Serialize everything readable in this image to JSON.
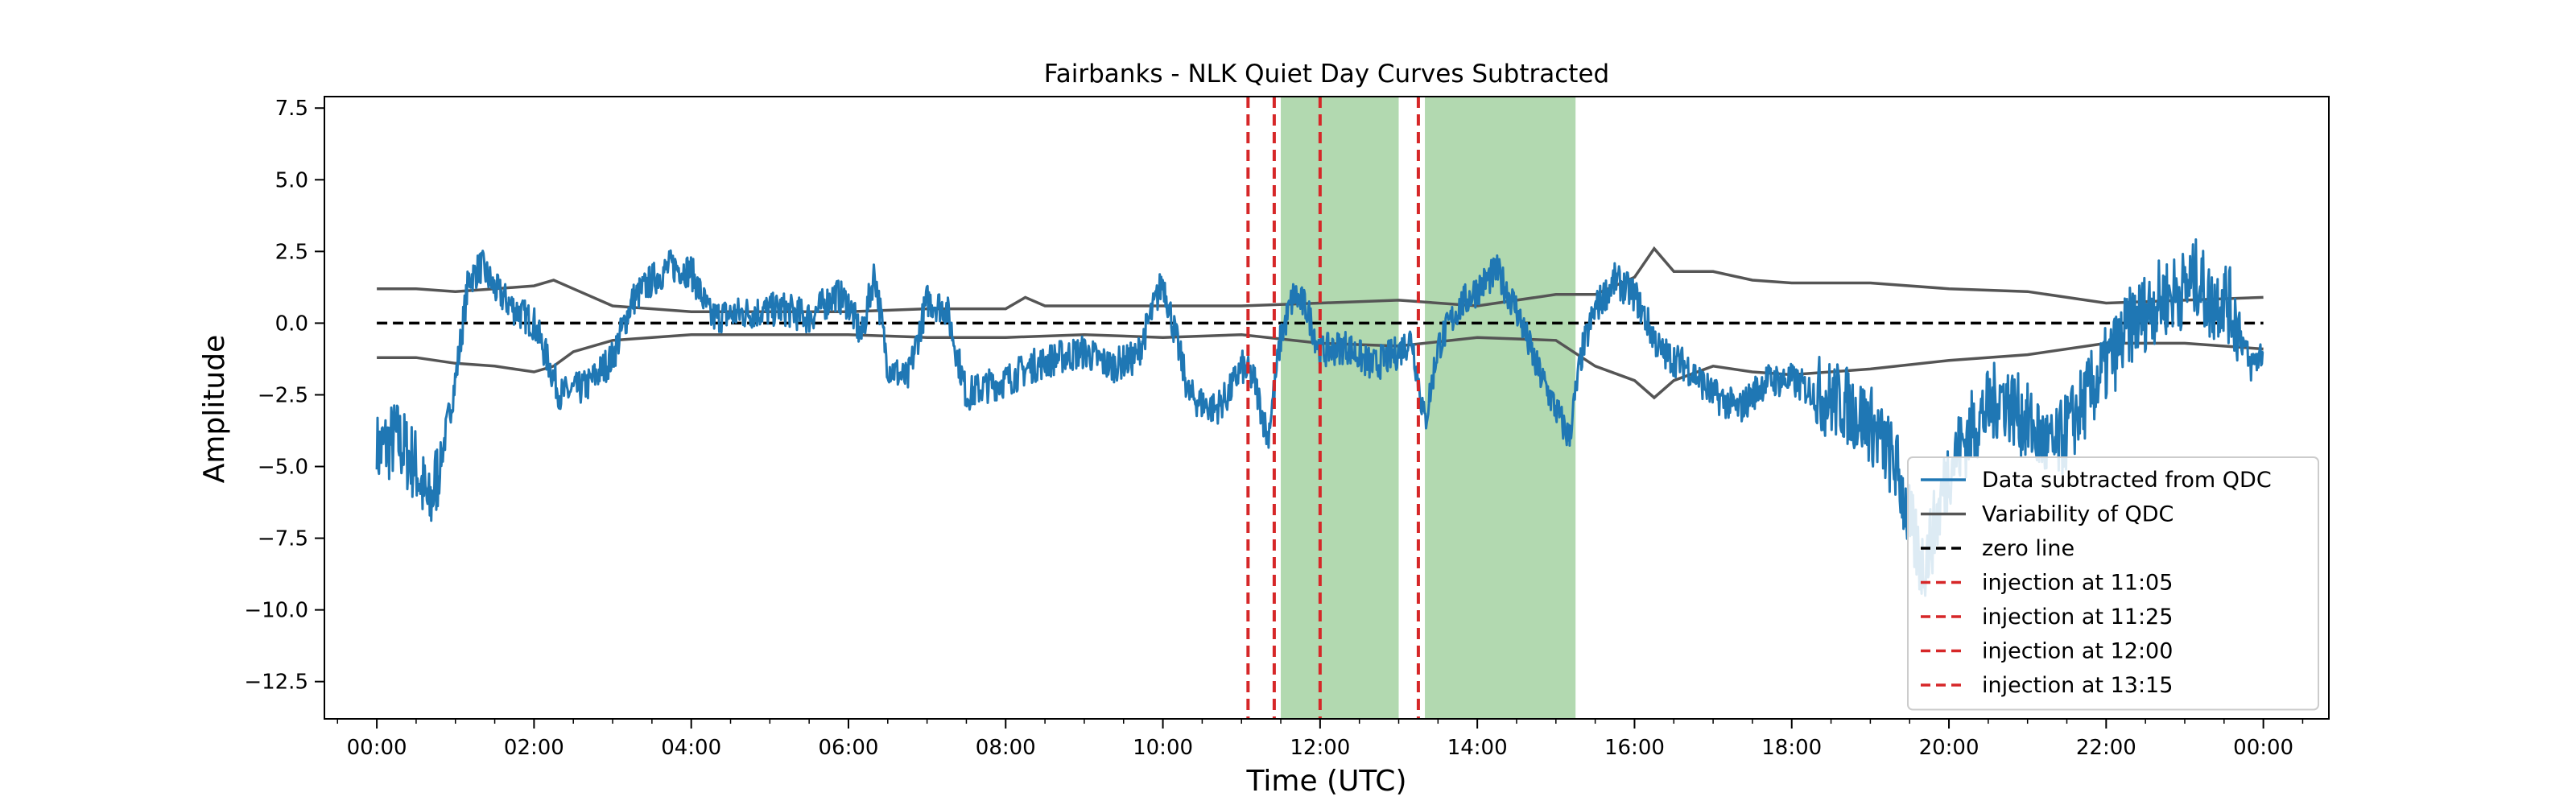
{
  "chart_data": {
    "type": "line",
    "title": "Fairbanks - NLK Quiet Day Curves Subtracted",
    "xlabel": "Time (UTC)",
    "ylabel": "Amplitude",
    "xlim": [
      "-00:40",
      "24:50"
    ],
    "ylim": [
      -13.8,
      7.9
    ],
    "xticks": [
      "00:00",
      "02:00",
      "04:00",
      "06:00",
      "08:00",
      "10:00",
      "12:00",
      "14:00",
      "16:00",
      "18:00",
      "20:00",
      "22:00",
      "00:00"
    ],
    "yticks": [
      "7.5",
      "5.0",
      "2.5",
      "0.0",
      "−2.5",
      "−5.0",
      "−7.5",
      "−10.0",
      "−12.5"
    ],
    "ytick_values": [
      7.5,
      5.0,
      2.5,
      0.0,
      -2.5,
      -5.0,
      -7.5,
      -10.0,
      -12.5
    ],
    "grid": false,
    "legend_position": "lower-right",
    "colors": {
      "data": "#1f77b4",
      "qdc": "#555555",
      "zero": "#000000",
      "injection": "#d62728",
      "shade": "#b2d9b0"
    },
    "shaded_spans": [
      {
        "start": "11:30",
        "end": "13:00"
      },
      {
        "start": "13:20",
        "end": "15:15"
      }
    ],
    "injections": [
      "11:05",
      "11:25",
      "12:00",
      "13:15"
    ],
    "series": [
      {
        "name": "Data subtracted from QDC",
        "x": [
          "00:00",
          "00:15",
          "00:30",
          "00:40",
          "00:50",
          "01:00",
          "01:10",
          "01:20",
          "01:30",
          "01:45",
          "02:00",
          "02:20",
          "02:40",
          "03:00",
          "03:15",
          "03:30",
          "03:45",
          "04:00",
          "04:15",
          "04:30",
          "04:50",
          "05:10",
          "05:30",
          "05:50",
          "06:00",
          "06:10",
          "06:20",
          "06:30",
          "06:45",
          "07:00",
          "07:15",
          "07:30",
          "07:45",
          "08:00",
          "08:20",
          "08:40",
          "09:00",
          "09:20",
          "09:40",
          "10:00",
          "10:10",
          "10:20",
          "10:30",
          "10:40",
          "10:50",
          "11:00",
          "11:10",
          "11:20",
          "11:30",
          "11:40",
          "11:50",
          "12:00",
          "12:20",
          "12:40",
          "13:00",
          "13:10",
          "13:20",
          "13:30",
          "13:45",
          "14:00",
          "14:15",
          "14:30",
          "14:45",
          "15:00",
          "15:10",
          "15:20",
          "15:30",
          "15:45",
          "16:00",
          "16:20",
          "16:40",
          "17:00",
          "17:20",
          "17:40",
          "18:00",
          "18:20",
          "18:40",
          "19:00",
          "19:20",
          "19:30",
          "19:40",
          "19:50",
          "20:00",
          "20:20",
          "20:40",
          "21:00",
          "21:20",
          "21:40",
          "22:00",
          "22:20",
          "22:40",
          "23:00",
          "23:10",
          "23:20",
          "23:30",
          "23:40",
          "23:50",
          "00:00"
        ],
        "y": [
          -4.5,
          -4.0,
          -5.0,
          -6.5,
          -4.5,
          -2.0,
          1.5,
          2.0,
          1.2,
          0.5,
          0.0,
          -2.5,
          -2.2,
          -1.2,
          0.8,
          1.5,
          2.0,
          1.8,
          0.2,
          0.3,
          0.4,
          0.5,
          0.2,
          1.0,
          0.7,
          -0.5,
          1.8,
          -1.5,
          -2.0,
          0.8,
          0.5,
          -2.5,
          -2.2,
          -2.0,
          -1.5,
          -1.2,
          -1.0,
          -1.5,
          -1.2,
          1.5,
          -0.5,
          -2.5,
          -2.8,
          -3.0,
          -2.5,
          -1.5,
          -2.0,
          -4.0,
          -0.5,
          1.0,
          0.5,
          -1.0,
          -0.8,
          -1.5,
          -1.0,
          -0.5,
          -3.5,
          -0.8,
          0.5,
          1.2,
          1.8,
          0.5,
          -1.5,
          -3.0,
          -4.0,
          -1.0,
          0.5,
          1.5,
          1.0,
          -1.0,
          -1.5,
          -2.5,
          -3.0,
          -2.0,
          -2.0,
          -2.5,
          -2.8,
          -3.5,
          -5.0,
          -7.0,
          -8.5,
          -7.0,
          -5.0,
          -3.5,
          -2.5,
          -3.5,
          -4.5,
          -3.0,
          -1.5,
          0.0,
          0.8,
          1.2,
          1.6,
          0.6,
          1.0,
          0.0,
          -1.5,
          -1.0
        ]
      },
      {
        "name": "Variability of QDC",
        "upper_x": [
          "00:00",
          "00:30",
          "01:00",
          "01:30",
          "02:00",
          "02:15",
          "02:30",
          "03:00",
          "03:30",
          "04:00",
          "05:00",
          "06:00",
          "07:00",
          "08:00",
          "08:15",
          "08:30",
          "09:00",
          "10:00",
          "11:00",
          "12:00",
          "13:00",
          "14:00",
          "15:00",
          "15:30",
          "16:00",
          "16:15",
          "16:30",
          "17:00",
          "17:30",
          "18:00",
          "19:00",
          "20:00",
          "21:00",
          "22:00",
          "23:00",
          "00:00"
        ],
        "upper_y": [
          1.2,
          1.2,
          1.1,
          1.2,
          1.3,
          1.5,
          1.2,
          0.6,
          0.5,
          0.4,
          0.4,
          0.4,
          0.5,
          0.5,
          0.9,
          0.6,
          0.6,
          0.6,
          0.6,
          0.7,
          0.8,
          0.6,
          1.0,
          1.0,
          1.6,
          2.6,
          1.8,
          1.8,
          1.5,
          1.4,
          1.4,
          1.2,
          1.1,
          0.7,
          0.8,
          0.9
        ],
        "lower_x": [
          "00:00",
          "00:30",
          "01:00",
          "01:30",
          "02:00",
          "02:15",
          "02:30",
          "03:00",
          "03:30",
          "04:00",
          "05:00",
          "06:00",
          "07:00",
          "08:00",
          "09:00",
          "10:00",
          "11:00",
          "12:00",
          "13:00",
          "14:00",
          "15:00",
          "15:30",
          "16:00",
          "16:15",
          "16:30",
          "17:00",
          "17:30",
          "18:00",
          "19:00",
          "20:00",
          "21:00",
          "22:00",
          "23:00",
          "00:00"
        ],
        "lower_y": [
          -1.2,
          -1.2,
          -1.4,
          -1.5,
          -1.7,
          -1.5,
          -1.0,
          -0.6,
          -0.5,
          -0.4,
          -0.4,
          -0.4,
          -0.5,
          -0.5,
          -0.4,
          -0.5,
          -0.4,
          -0.7,
          -0.8,
          -0.5,
          -0.6,
          -1.5,
          -2.0,
          -2.6,
          -2.0,
          -1.5,
          -1.7,
          -1.8,
          -1.6,
          -1.3,
          -1.1,
          -0.7,
          -0.7,
          -0.9
        ]
      },
      {
        "name": "zero line",
        "value": 0.0
      }
    ],
    "legend": [
      {
        "label": "Data subtracted from QDC",
        "style": "solid",
        "color": "#1f77b4"
      },
      {
        "label": "Variability of QDC",
        "style": "solid",
        "color": "#555555"
      },
      {
        "label": "zero line",
        "style": "dashed",
        "color": "#000000"
      },
      {
        "label": "injection at 11:05",
        "style": "dashed",
        "color": "#d62728"
      },
      {
        "label": "injection at 11:25",
        "style": "dashed",
        "color": "#d62728"
      },
      {
        "label": "injection at 12:00",
        "style": "dashed",
        "color": "#d62728"
      },
      {
        "label": "injection at 13:15",
        "style": "dashed",
        "color": "#d62728"
      }
    ]
  }
}
